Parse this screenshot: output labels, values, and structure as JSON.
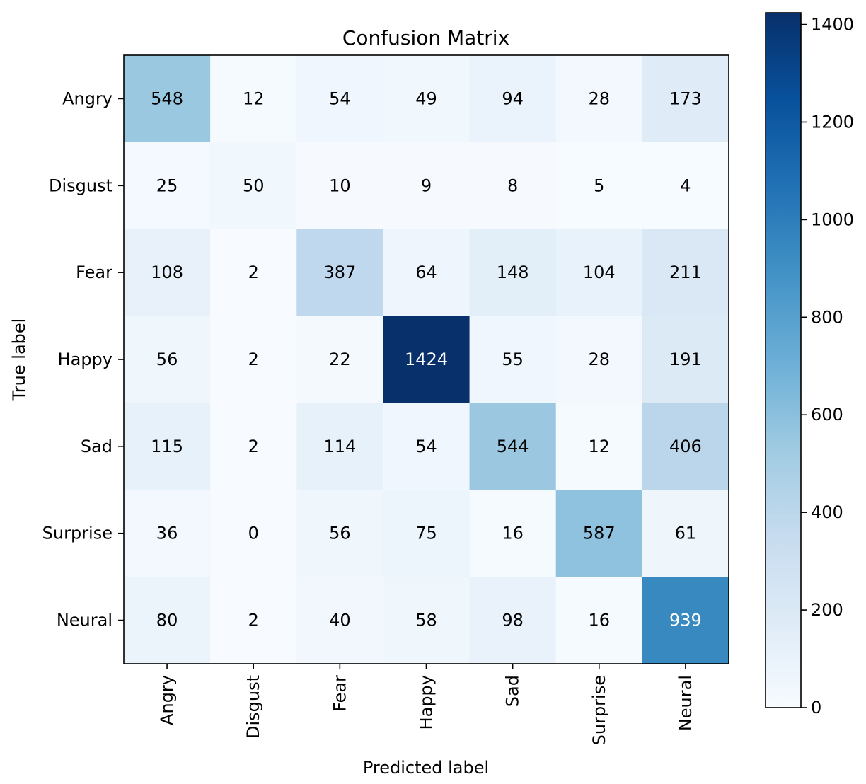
{
  "chart_data": {
    "type": "heatmap",
    "title": "Confusion Matrix",
    "xlabel": "Predicted label",
    "ylabel": "True label",
    "row_labels": [
      "Angry",
      "Disgust",
      "Fear",
      "Happy",
      "Sad",
      "Surprise",
      "Neural"
    ],
    "col_labels": [
      "Angry",
      "Disgust",
      "Fear",
      "Happy",
      "Sad",
      "Surprise",
      "Neural"
    ],
    "matrix": [
      [
        548,
        12,
        54,
        49,
        94,
        28,
        173
      ],
      [
        25,
        50,
        10,
        9,
        8,
        5,
        4
      ],
      [
        108,
        2,
        387,
        64,
        148,
        104,
        211
      ],
      [
        56,
        2,
        22,
        1424,
        55,
        28,
        191
      ],
      [
        115,
        2,
        114,
        54,
        544,
        12,
        406
      ],
      [
        36,
        0,
        56,
        75,
        16,
        587,
        61
      ],
      [
        80,
        2,
        40,
        58,
        98,
        16,
        939
      ]
    ],
    "colorbar": {
      "min": 0,
      "max": 1424,
      "ticks": [
        0,
        200,
        400,
        600,
        800,
        1000,
        1200,
        1400
      ]
    },
    "colormap": "Blues",
    "colormap_stops": [
      "#f7fbff",
      "#deebf7",
      "#c6dbef",
      "#9ecae1",
      "#6baed6",
      "#4292c6",
      "#2171b5",
      "#08519c",
      "#08306b"
    ]
  }
}
